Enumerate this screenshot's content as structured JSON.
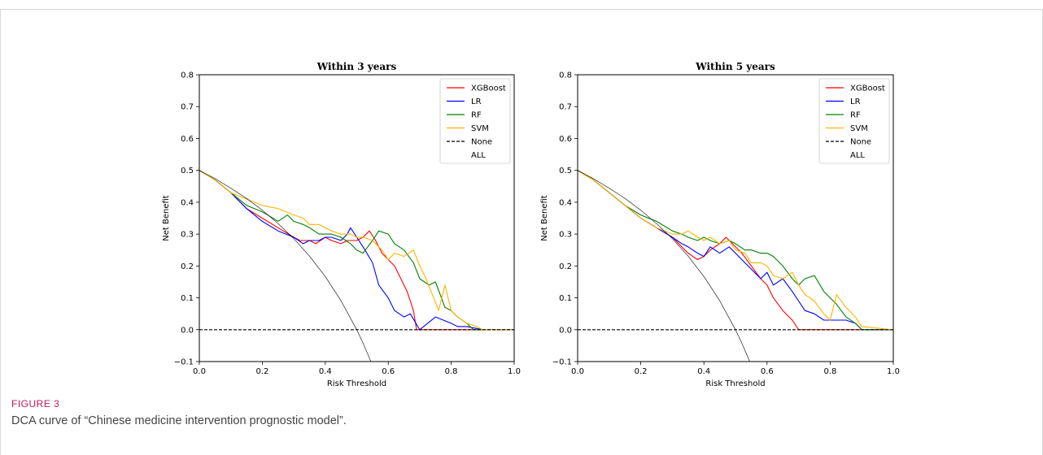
{
  "figure": {
    "label": "FIGURE 3",
    "caption": "DCA curve of “Chinese medicine intervention prognostic model”."
  },
  "colors": {
    "XGBoost": "#ff0000",
    "LR": "#0000ff",
    "RF": "#008000",
    "SVM": "#ffb400",
    "None": "#000000",
    "ALL": "#000000"
  },
  "chart_data": [
    {
      "type": "line",
      "title": "Within 3 years",
      "xlabel": "Risk Threshold",
      "ylabel": "Net Benefit",
      "xlim": [
        0,
        1
      ],
      "ylim": [
        -0.1,
        0.8
      ],
      "xticks": [
        "0.0",
        "0.2",
        "0.4",
        "0.6",
        "0.8",
        "1.0"
      ],
      "yticks": [
        "−0.1",
        "0.0",
        "0.1",
        "0.2",
        "0.3",
        "0.4",
        "0.5",
        "0.6",
        "0.7",
        "0.8"
      ],
      "legend": [
        "XGBoost",
        "LR",
        "RF",
        "SVM",
        "None",
        "ALL"
      ],
      "legend_position": "top-right",
      "grid": false,
      "series": [
        {
          "name": "XGBoost",
          "x": [
            0,
            0.05,
            0.1,
            0.15,
            0.2,
            0.25,
            0.3,
            0.32,
            0.35,
            0.37,
            0.4,
            0.42,
            0.45,
            0.47,
            0.5,
            0.52,
            0.54,
            0.56,
            0.58,
            0.6,
            0.62,
            0.64,
            0.66,
            0.68,
            0.69,
            0.7,
            0.75,
            0.8,
            0.85,
            0.9,
            1.0
          ],
          "y": [
            0.5,
            0.47,
            0.43,
            0.38,
            0.35,
            0.32,
            0.29,
            0.28,
            0.28,
            0.27,
            0.29,
            0.28,
            0.27,
            0.28,
            0.28,
            0.29,
            0.31,
            0.28,
            0.24,
            0.22,
            0.2,
            0.16,
            0.12,
            0.06,
            0.0,
            0.0,
            0.0,
            0.0,
            0.0,
            0.0,
            0.0
          ]
        },
        {
          "name": "LR",
          "x": [
            0,
            0.05,
            0.1,
            0.15,
            0.2,
            0.25,
            0.3,
            0.33,
            0.35,
            0.38,
            0.4,
            0.42,
            0.45,
            0.47,
            0.48,
            0.5,
            0.52,
            0.55,
            0.57,
            0.6,
            0.62,
            0.65,
            0.67,
            0.7,
            0.75,
            0.8,
            0.82,
            0.85,
            0.9,
            1.0
          ],
          "y": [
            0.5,
            0.47,
            0.43,
            0.38,
            0.34,
            0.31,
            0.29,
            0.27,
            0.28,
            0.28,
            0.29,
            0.29,
            0.28,
            0.3,
            0.32,
            0.29,
            0.26,
            0.21,
            0.14,
            0.1,
            0.06,
            0.04,
            0.05,
            0.0,
            0.04,
            0.02,
            0.01,
            0.01,
            0.0,
            0.0
          ]
        },
        {
          "name": "RF",
          "x": [
            0,
            0.05,
            0.1,
            0.15,
            0.2,
            0.25,
            0.28,
            0.3,
            0.33,
            0.35,
            0.38,
            0.4,
            0.42,
            0.45,
            0.48,
            0.5,
            0.52,
            0.55,
            0.57,
            0.6,
            0.62,
            0.65,
            0.68,
            0.7,
            0.73,
            0.75,
            0.78,
            0.8,
            0.82,
            0.85,
            0.87,
            0.9,
            1.0
          ],
          "y": [
            0.5,
            0.47,
            0.43,
            0.39,
            0.37,
            0.34,
            0.36,
            0.34,
            0.33,
            0.32,
            0.3,
            0.3,
            0.3,
            0.29,
            0.27,
            0.25,
            0.24,
            0.28,
            0.31,
            0.3,
            0.27,
            0.25,
            0.21,
            0.16,
            0.14,
            0.15,
            0.07,
            0.06,
            0.04,
            0.02,
            0.0,
            0.0,
            0.0
          ]
        },
        {
          "name": "SVM",
          "x": [
            0,
            0.05,
            0.1,
            0.15,
            0.2,
            0.25,
            0.3,
            0.33,
            0.35,
            0.38,
            0.4,
            0.42,
            0.45,
            0.48,
            0.5,
            0.52,
            0.55,
            0.58,
            0.6,
            0.62,
            0.65,
            0.68,
            0.7,
            0.72,
            0.74,
            0.76,
            0.78,
            0.8,
            0.82,
            0.85,
            0.88,
            0.9,
            1.0
          ],
          "y": [
            0.5,
            0.47,
            0.43,
            0.41,
            0.39,
            0.38,
            0.36,
            0.35,
            0.33,
            0.33,
            0.32,
            0.31,
            0.3,
            0.3,
            0.29,
            0.29,
            0.28,
            0.25,
            0.22,
            0.24,
            0.23,
            0.25,
            0.2,
            0.16,
            0.11,
            0.06,
            0.14,
            0.06,
            0.04,
            0.02,
            0.01,
            0.0,
            0.0
          ]
        },
        {
          "name": "None",
          "x": [
            0,
            1
          ],
          "y": [
            0,
            0
          ]
        },
        {
          "name": "ALL",
          "x": [
            0,
            0.05,
            0.1,
            0.15,
            0.2,
            0.25,
            0.3,
            0.35,
            0.4,
            0.45,
            0.5,
            0.52,
            0.545
          ],
          "y": [
            0.5,
            0.474,
            0.444,
            0.412,
            0.375,
            0.333,
            0.286,
            0.231,
            0.167,
            0.091,
            0.0,
            -0.042,
            -0.1
          ]
        }
      ]
    },
    {
      "type": "line",
      "title": "Within 5 years",
      "xlabel": "Risk Threshold",
      "ylabel": "Net Benefit",
      "xlim": [
        0,
        1
      ],
      "ylim": [
        -0.1,
        0.8
      ],
      "xticks": [
        "0.0",
        "0.2",
        "0.4",
        "0.6",
        "0.8",
        "1.0"
      ],
      "yticks": [
        "−0.1",
        "0.0",
        "0.1",
        "0.2",
        "0.3",
        "0.4",
        "0.5",
        "0.6",
        "0.7",
        "0.8"
      ],
      "legend": [
        "XGBoost",
        "LR",
        "RF",
        "SVM",
        "None",
        "ALL"
      ],
      "legend_position": "top-right",
      "grid": false,
      "series": [
        {
          "name": "XGBoost",
          "x": [
            0,
            0.05,
            0.1,
            0.15,
            0.2,
            0.25,
            0.3,
            0.33,
            0.35,
            0.38,
            0.4,
            0.42,
            0.45,
            0.47,
            0.5,
            0.52,
            0.55,
            0.58,
            0.6,
            0.62,
            0.65,
            0.68,
            0.7,
            0.75,
            0.8,
            0.85,
            0.9,
            1.0
          ],
          "y": [
            0.5,
            0.47,
            0.43,
            0.39,
            0.35,
            0.32,
            0.29,
            0.26,
            0.24,
            0.22,
            0.23,
            0.25,
            0.27,
            0.29,
            0.26,
            0.24,
            0.2,
            0.16,
            0.14,
            0.1,
            0.06,
            0.03,
            0.0,
            0.0,
            0.0,
            0.0,
            0.0,
            0.0
          ]
        },
        {
          "name": "LR",
          "x": [
            0,
            0.05,
            0.1,
            0.15,
            0.2,
            0.25,
            0.3,
            0.33,
            0.35,
            0.38,
            0.4,
            0.42,
            0.45,
            0.48,
            0.5,
            0.53,
            0.55,
            0.58,
            0.6,
            0.62,
            0.65,
            0.68,
            0.7,
            0.72,
            0.75,
            0.78,
            0.8,
            0.85,
            0.88,
            0.9,
            1.0
          ],
          "y": [
            0.5,
            0.47,
            0.43,
            0.39,
            0.35,
            0.32,
            0.29,
            0.27,
            0.26,
            0.24,
            0.23,
            0.26,
            0.24,
            0.26,
            0.24,
            0.21,
            0.19,
            0.16,
            0.18,
            0.14,
            0.16,
            0.12,
            0.09,
            0.06,
            0.05,
            0.03,
            0.03,
            0.03,
            0.02,
            0.0,
            0.0
          ]
        },
        {
          "name": "RF",
          "x": [
            0,
            0.05,
            0.1,
            0.15,
            0.2,
            0.25,
            0.3,
            0.33,
            0.35,
            0.38,
            0.4,
            0.42,
            0.45,
            0.48,
            0.5,
            0.53,
            0.55,
            0.58,
            0.6,
            0.62,
            0.65,
            0.68,
            0.7,
            0.72,
            0.75,
            0.78,
            0.8,
            0.82,
            0.85,
            0.88,
            0.9,
            1.0
          ],
          "y": [
            0.5,
            0.47,
            0.43,
            0.39,
            0.36,
            0.34,
            0.31,
            0.3,
            0.29,
            0.28,
            0.29,
            0.28,
            0.27,
            0.28,
            0.27,
            0.25,
            0.25,
            0.24,
            0.24,
            0.23,
            0.2,
            0.16,
            0.14,
            0.16,
            0.17,
            0.12,
            0.1,
            0.08,
            0.04,
            0.02,
            0.0,
            0.0
          ]
        },
        {
          "name": "SVM",
          "x": [
            0,
            0.05,
            0.1,
            0.15,
            0.2,
            0.25,
            0.3,
            0.33,
            0.35,
            0.38,
            0.4,
            0.42,
            0.45,
            0.48,
            0.5,
            0.53,
            0.55,
            0.58,
            0.6,
            0.62,
            0.65,
            0.68,
            0.7,
            0.72,
            0.75,
            0.78,
            0.8,
            0.82,
            0.85,
            0.88,
            0.9,
            1.0
          ],
          "y": [
            0.5,
            0.47,
            0.43,
            0.39,
            0.35,
            0.32,
            0.3,
            0.3,
            0.31,
            0.29,
            0.28,
            0.29,
            0.27,
            0.28,
            0.25,
            0.24,
            0.21,
            0.21,
            0.2,
            0.17,
            0.16,
            0.18,
            0.14,
            0.11,
            0.09,
            0.05,
            0.03,
            0.11,
            0.07,
            0.04,
            0.01,
            0.0
          ]
        },
        {
          "name": "None",
          "x": [
            0,
            1
          ],
          "y": [
            0,
            0
          ]
        },
        {
          "name": "ALL",
          "x": [
            0,
            0.05,
            0.1,
            0.15,
            0.2,
            0.25,
            0.3,
            0.35,
            0.4,
            0.45,
            0.5,
            0.52,
            0.545
          ],
          "y": [
            0.5,
            0.474,
            0.444,
            0.412,
            0.375,
            0.333,
            0.286,
            0.231,
            0.167,
            0.091,
            0.0,
            -0.042,
            -0.1
          ]
        }
      ]
    }
  ]
}
